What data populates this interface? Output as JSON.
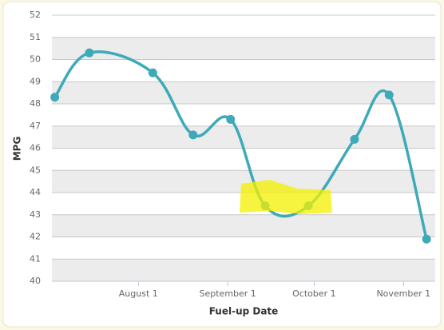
{
  "chart_data": {
    "type": "line",
    "x_label": "Fuel-up Date",
    "y_label": "MPG",
    "x": [
      "07-03",
      "07-15",
      "08-06",
      "08-20",
      "09-02",
      "09-14",
      "09-29",
      "10-15",
      "10-27",
      "11-09"
    ],
    "values": [
      48.3,
      50.3,
      49.4,
      46.6,
      47.3,
      43.4,
      43.4,
      46.4,
      48.4,
      41.9
    ],
    "color": "#3eaab8",
    "xlim": [
      "07-02",
      "11-12"
    ],
    "xticks": [
      {
        "value": "08-01",
        "label": "August 1"
      },
      {
        "value": "09-01",
        "label": "September 1"
      },
      {
        "value": "10-01",
        "label": "October 1"
      },
      {
        "value": "11-01",
        "label": "November 1"
      }
    ],
    "ylim": [
      40,
      52
    ],
    "yticks": [
      40,
      41,
      42,
      43,
      44,
      45,
      46,
      47,
      48,
      49,
      50,
      51,
      52
    ],
    "grid": true
  }
}
